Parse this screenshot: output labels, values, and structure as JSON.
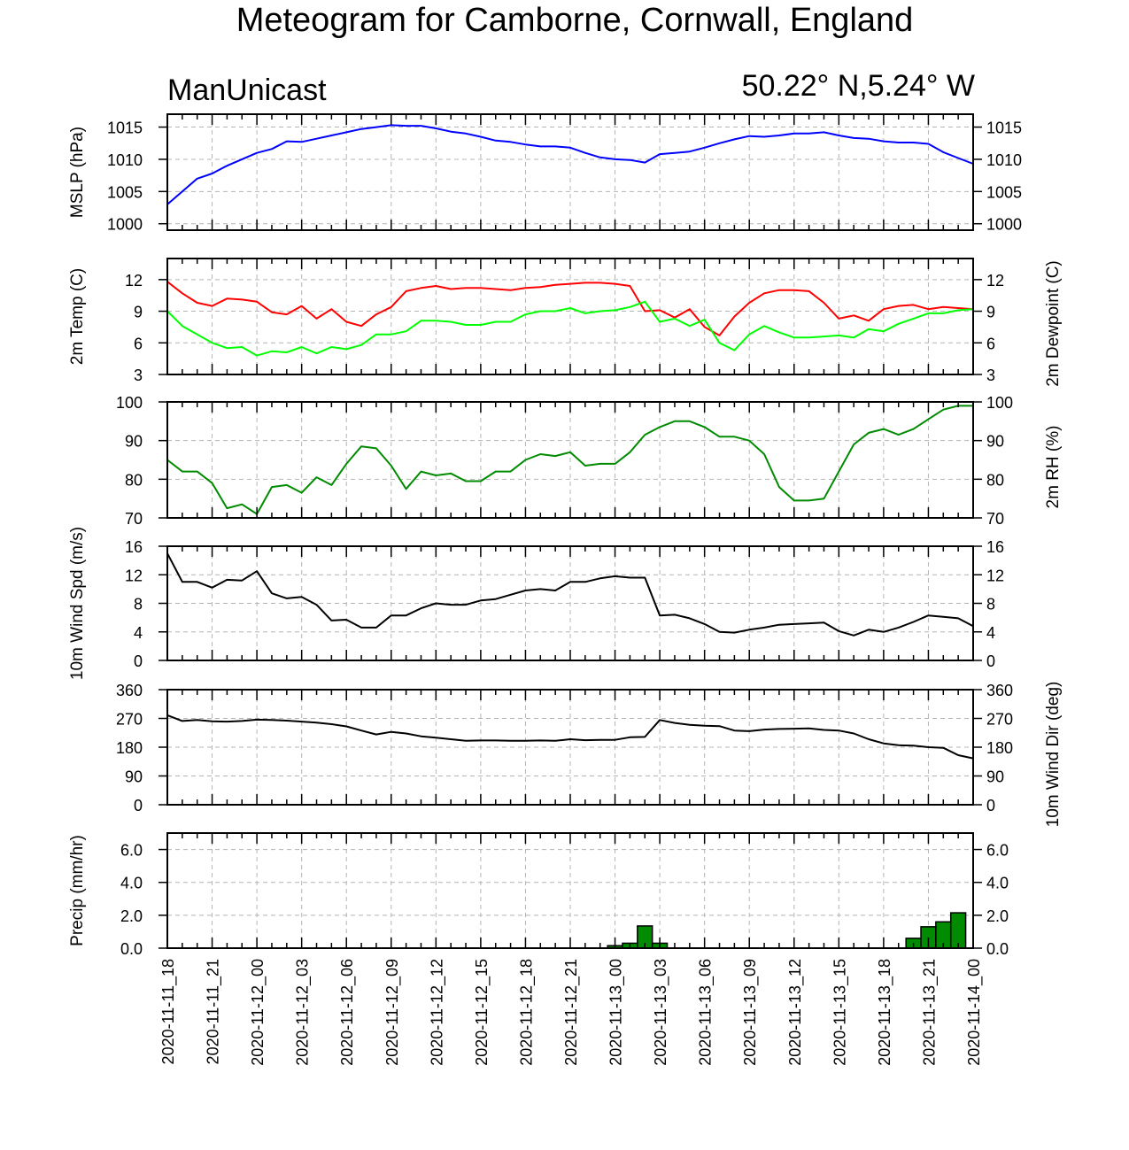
{
  "header": {
    "title": "Meteogram for Camborne, Cornwall, England",
    "model": "ManUnicast",
    "location": "50.22° N,5.24° W"
  },
  "chart_data": {
    "type": "line",
    "x_labels": [
      "2020-11-11_18",
      "2020-11-11_21",
      "2020-11-12_00",
      "2020-11-12_03",
      "2020-11-12_06",
      "2020-11-12_09",
      "2020-11-12_12",
      "2020-11-12_15",
      "2020-11-12_18",
      "2020-11-12_21",
      "2020-11-13_00",
      "2020-11-13_03",
      "2020-11-13_06",
      "2020-11-13_09",
      "2020-11-13_12",
      "2020-11-13_15",
      "2020-11-13_18",
      "2020-11-13_21",
      "2020-11-14_00"
    ],
    "x_range": [
      0,
      54
    ],
    "grid": true,
    "panels": [
      {
        "id": "mslp",
        "type": "line",
        "ylabel": "MSLP (hPa)",
        "ylabel_right": "",
        "ylim": [
          999,
          1017
        ],
        "yticks": [
          1000,
          1005,
          1010,
          1015
        ],
        "ytick_labels": [
          "1000",
          "1005",
          "1010",
          "1015"
        ],
        "series": [
          {
            "color": "#0000ff",
            "x": [
              0,
              1,
              2,
              3,
              4,
              5,
              6,
              7,
              8,
              9,
              10,
              11,
              12,
              13,
              14,
              15,
              16,
              17,
              18,
              19,
              20,
              21,
              22,
              23,
              24,
              25,
              26,
              27,
              28,
              29,
              30,
              31,
              32,
              33,
              34,
              35,
              36,
              37,
              38,
              39,
              40,
              41,
              42,
              43,
              44,
              45,
              46,
              47,
              48,
              49,
              50,
              51,
              52,
              53,
              54
            ],
            "y": [
              1003.0,
              1005.0,
              1007.0,
              1007.8,
              1009.0,
              1010.0,
              1011.0,
              1011.6,
              1012.8,
              1012.7,
              1013.2,
              1013.7,
              1014.2,
              1014.7,
              1015.0,
              1015.3,
              1015.2,
              1015.2,
              1014.8,
              1014.3,
              1014.0,
              1013.5,
              1012.9,
              1012.7,
              1012.3,
              1012.0,
              1012.0,
              1011.8,
              1011.0,
              1010.3,
              1010.0,
              1009.9,
              1009.5,
              1010.8,
              1011.0,
              1011.2,
              1011.8,
              1012.5,
              1013.1,
              1013.6,
              1013.5,
              1013.7,
              1014.0,
              1014.0,
              1014.2,
              1013.7,
              1013.3,
              1013.2,
              1012.8,
              1012.6,
              1012.6,
              1012.4,
              1011.1,
              1010.2,
              1009.3
            ]
          }
        ]
      },
      {
        "id": "temp",
        "type": "line",
        "ylabel": "2m Temp (C)",
        "ylabel_right": "2m Dewpoint (C)",
        "ylim": [
          3,
          14
        ],
        "yticks": [
          3,
          6,
          9,
          12
        ],
        "ytick_labels": [
          "3",
          "6",
          "9",
          "12"
        ],
        "series": [
          {
            "color": "#ff0000",
            "x": [
              0,
              1,
              2,
              3,
              4,
              5,
              6,
              7,
              8,
              9,
              10,
              11,
              12,
              13,
              14,
              15,
              16,
              17,
              18,
              19,
              20,
              21,
              22,
              23,
              24,
              25,
              26,
              27,
              28,
              29,
              30,
              31,
              32,
              33,
              34,
              35,
              36,
              37,
              38,
              39,
              40,
              41,
              42,
              43,
              44,
              45,
              46,
              47,
              48,
              49,
              50,
              51,
              52,
              53,
              54
            ],
            "y": [
              11.8,
              10.7,
              9.8,
              9.5,
              10.2,
              10.1,
              9.9,
              8.9,
              8.7,
              9.5,
              8.3,
              9.2,
              8.0,
              7.6,
              8.7,
              9.4,
              10.9,
              11.2,
              11.4,
              11.1,
              11.2,
              11.2,
              11.1,
              11.0,
              11.2,
              11.3,
              11.5,
              11.6,
              11.7,
              11.7,
              11.6,
              11.4,
              9.0,
              9.1,
              8.4,
              9.2,
              7.5,
              6.7,
              8.5,
              9.8,
              10.7,
              11.0,
              11.0,
              10.9,
              9.8,
              8.3,
              8.6,
              8.1,
              9.2,
              9.5,
              9.6,
              9.2,
              9.4,
              9.3,
              9.2
            ]
          },
          {
            "color": "#00ff00",
            "x": [
              0,
              1,
              2,
              3,
              4,
              5,
              6,
              7,
              8,
              9,
              10,
              11,
              12,
              13,
              14,
              15,
              16,
              17,
              18,
              19,
              20,
              21,
              22,
              23,
              24,
              25,
              26,
              27,
              28,
              29,
              30,
              31,
              32,
              33,
              34,
              35,
              36,
              37,
              38,
              39,
              40,
              41,
              42,
              43,
              44,
              45,
              46,
              47,
              48,
              49,
              50,
              51,
              52,
              53,
              54
            ],
            "y": [
              9.0,
              7.6,
              6.8,
              6.0,
              5.5,
              5.6,
              4.8,
              5.2,
              5.1,
              5.6,
              5.0,
              5.6,
              5.4,
              5.8,
              6.8,
              6.8,
              7.1,
              8.1,
              8.1,
              8.0,
              7.7,
              7.7,
              8.0,
              8.0,
              8.7,
              9.0,
              9.0,
              9.3,
              8.8,
              9.0,
              9.1,
              9.4,
              9.9,
              8.0,
              8.3,
              7.6,
              8.2,
              6.0,
              5.3,
              6.8,
              7.6,
              7.0,
              6.5,
              6.5,
              6.6,
              6.7,
              6.5,
              7.3,
              7.1,
              7.8,
              8.3,
              8.8,
              8.8,
              9.1,
              9.2
            ]
          }
        ]
      },
      {
        "id": "rh",
        "type": "line",
        "ylabel": "",
        "ylabel_right": "2m RH (%)",
        "ylim": [
          70,
          100
        ],
        "yticks": [
          70,
          80,
          90,
          100
        ],
        "ytick_labels": [
          "70",
          "80",
          "90",
          "100"
        ],
        "series": [
          {
            "color": "#008b00",
            "x": [
              0,
              1,
              2,
              3,
              4,
              5,
              6,
              7,
              8,
              9,
              10,
              11,
              12,
              13,
              14,
              15,
              16,
              17,
              18,
              19,
              20,
              21,
              22,
              23,
              24,
              25,
              26,
              27,
              28,
              29,
              30,
              31,
              32,
              33,
              34,
              35,
              36,
              37,
              38,
              39,
              40,
              41,
              42,
              43,
              44,
              45,
              46,
              47,
              48,
              49,
              50,
              51,
              52,
              53,
              54
            ],
            "y": [
              85.0,
              82.0,
              82.0,
              79.0,
              72.5,
              73.5,
              71.0,
              78.0,
              78.5,
              76.5,
              80.5,
              78.5,
              84.0,
              88.5,
              88.0,
              83.5,
              77.5,
              82.0,
              81.0,
              81.5,
              79.5,
              79.5,
              82.0,
              82.0,
              85.0,
              86.5,
              86.0,
              87.0,
              83.5,
              84.0,
              84.0,
              87.0,
              91.5,
              93.5,
              95.0,
              95.0,
              93.5,
              91.0,
              91.0,
              90.0,
              86.5,
              78.0,
              74.5,
              74.5,
              75.0,
              82.0,
              89.0,
              92.0,
              93.0,
              91.5,
              93.0,
              95.5,
              98.0,
              99.0,
              99.0
            ]
          }
        ]
      },
      {
        "id": "wspd",
        "type": "line",
        "ylabel": "10m Wind Spd (m/s)",
        "ylabel_right": "",
        "ylim": [
          0,
          16
        ],
        "yticks": [
          0,
          4,
          8,
          12,
          16
        ],
        "ytick_labels": [
          "0",
          "4",
          "8",
          "12",
          "16"
        ],
        "series": [
          {
            "color": "#000000",
            "x": [
              0,
              1,
              2,
              3,
              4,
              5,
              6,
              7,
              8,
              9,
              10,
              11,
              12,
              13,
              14,
              15,
              16,
              17,
              18,
              19,
              20,
              21,
              22,
              23,
              24,
              25,
              26,
              27,
              28,
              29,
              30,
              31,
              32,
              33,
              34,
              35,
              36,
              37,
              38,
              39,
              40,
              41,
              42,
              43,
              44,
              45,
              46,
              47,
              48,
              49,
              50,
              51,
              52,
              53,
              54
            ],
            "y": [
              15.0,
              11.0,
              11.0,
              10.2,
              11.3,
              11.2,
              12.5,
              9.4,
              8.7,
              8.9,
              7.8,
              5.6,
              5.7,
              4.6,
              4.6,
              6.3,
              6.3,
              7.3,
              8.0,
              7.8,
              7.8,
              8.4,
              8.6,
              9.2,
              9.8,
              10.0,
              9.8,
              11.0,
              11.0,
              11.5,
              11.8,
              11.6,
              11.6,
              6.3,
              6.4,
              5.9,
              5.1,
              4.0,
              3.9,
              4.3,
              4.6,
              5.0,
              5.1,
              5.2,
              5.3,
              4.1,
              3.5,
              4.3,
              4.0,
              4.6,
              5.4,
              6.3,
              6.1,
              5.9,
              4.8
            ]
          }
        ]
      },
      {
        "id": "wdir",
        "type": "line",
        "ylabel": "",
        "ylabel_right": "10m Wind Dir (deg)",
        "ylim": [
          0,
          360
        ],
        "yticks": [
          0,
          90,
          180,
          270,
          360
        ],
        "ytick_labels": [
          "0",
          "90",
          "180",
          "270",
          "360"
        ],
        "series": [
          {
            "color": "#000000",
            "x": [
              0,
              1,
              2,
              3,
              4,
              5,
              6,
              7,
              8,
              9,
              10,
              11,
              12,
              13,
              14,
              15,
              16,
              17,
              18,
              19,
              20,
              21,
              22,
              23,
              24,
              25,
              26,
              27,
              28,
              29,
              30,
              31,
              32,
              33,
              34,
              35,
              36,
              37,
              38,
              39,
              40,
              41,
              42,
              43,
              44,
              45,
              46,
              47,
              48,
              49,
              50,
              51,
              52,
              53,
              54
            ],
            "y": [
              280,
              262,
              265,
              261,
              260,
              262,
              266,
              265,
              263,
              260,
              257,
              252,
              245,
              232,
              220,
              228,
              223,
              214,
              210,
              205,
              200,
              201,
              201,
              200,
              200,
              201,
              200,
              205,
              202,
              203,
              203,
              211,
              212,
              265,
              256,
              250,
              247,
              246,
              232,
              230,
              235,
              237,
              238,
              239,
              234,
              232,
              223,
              205,
              192,
              186,
              185,
              180,
              178,
              155,
              145
            ]
          }
        ]
      },
      {
        "id": "precip",
        "type": "bar",
        "ylabel": "Precip (mm/hr)",
        "ylabel_right": "",
        "ylim": [
          0,
          7
        ],
        "yticks": [
          0,
          2,
          4,
          6
        ],
        "ytick_labels": [
          "0.0",
          "2.0",
          "4.0",
          "6.0"
        ],
        "bar_color": "#008b00",
        "bars": [
          {
            "x": 30,
            "value": 0.15
          },
          {
            "x": 31,
            "value": 0.3
          },
          {
            "x": 32,
            "value": 1.35
          },
          {
            "x": 33,
            "value": 0.3
          },
          {
            "x": 50,
            "value": 0.6
          },
          {
            "x": 51,
            "value": 1.3
          },
          {
            "x": 52,
            "value": 1.6
          },
          {
            "x": 53,
            "value": 2.15
          }
        ]
      }
    ]
  }
}
